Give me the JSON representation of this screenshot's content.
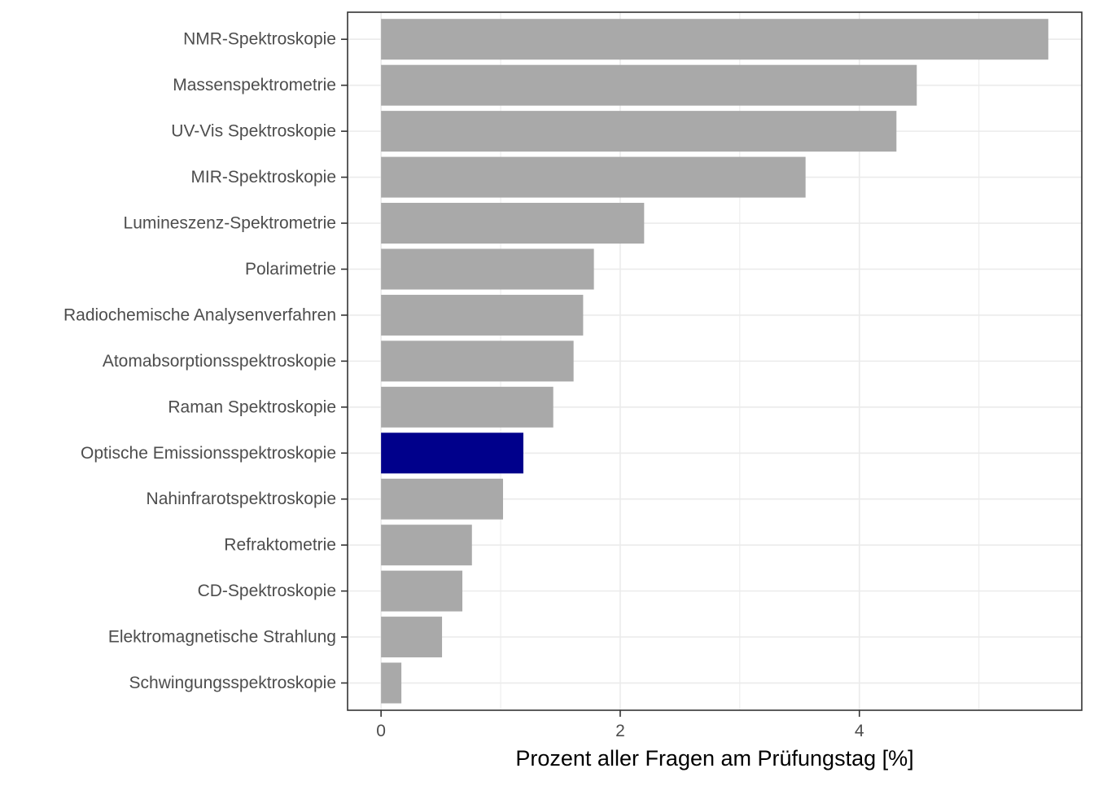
{
  "chart_data": {
    "type": "bar",
    "orientation": "horizontal",
    "categories": [
      "NMR-Spektroskopie",
      "Massenspektrometrie",
      "UV-Vis Spektroskopie",
      "MIR-Spektroskopie",
      "Lumineszenz-Spektrometrie",
      "Polarimetrie",
      "Radiochemische Analysenverfahren",
      "Atomabsorptionsspektroskopie",
      "Raman Spektroskopie",
      "Optische Emissionsspektroskopie",
      "Nahinfrarotspektroskopie",
      "Refraktometrie",
      "CD-Spektroskopie",
      "Elektromagnetische Strahlung",
      "Schwingungsspektroskopie"
    ],
    "values": [
      5.58,
      4.48,
      4.31,
      3.55,
      2.2,
      1.78,
      1.69,
      1.61,
      1.44,
      1.19,
      1.02,
      0.76,
      0.68,
      0.51,
      0.17
    ],
    "highlight": "Optische Emissionsspektroskopie",
    "colors": {
      "default_bar": "#a9a9a9",
      "highlight_bar": "#00008b",
      "grid": "#ebebeb",
      "panel_border": "#333333",
      "tick_text": "#4d4d4d",
      "title_text": "#000000"
    },
    "title": "",
    "xlabel": "Prozent aller Fragen am Prüfungstag [%]",
    "ylabel": "",
    "xlim": [
      -0.28,
      5.86
    ],
    "xticks": [
      0,
      2,
      4
    ],
    "xtick_labels": [
      "0",
      "2",
      "4"
    ],
    "minor_xticks": [
      1,
      3,
      5
    ],
    "grid": true,
    "legend": "none"
  }
}
